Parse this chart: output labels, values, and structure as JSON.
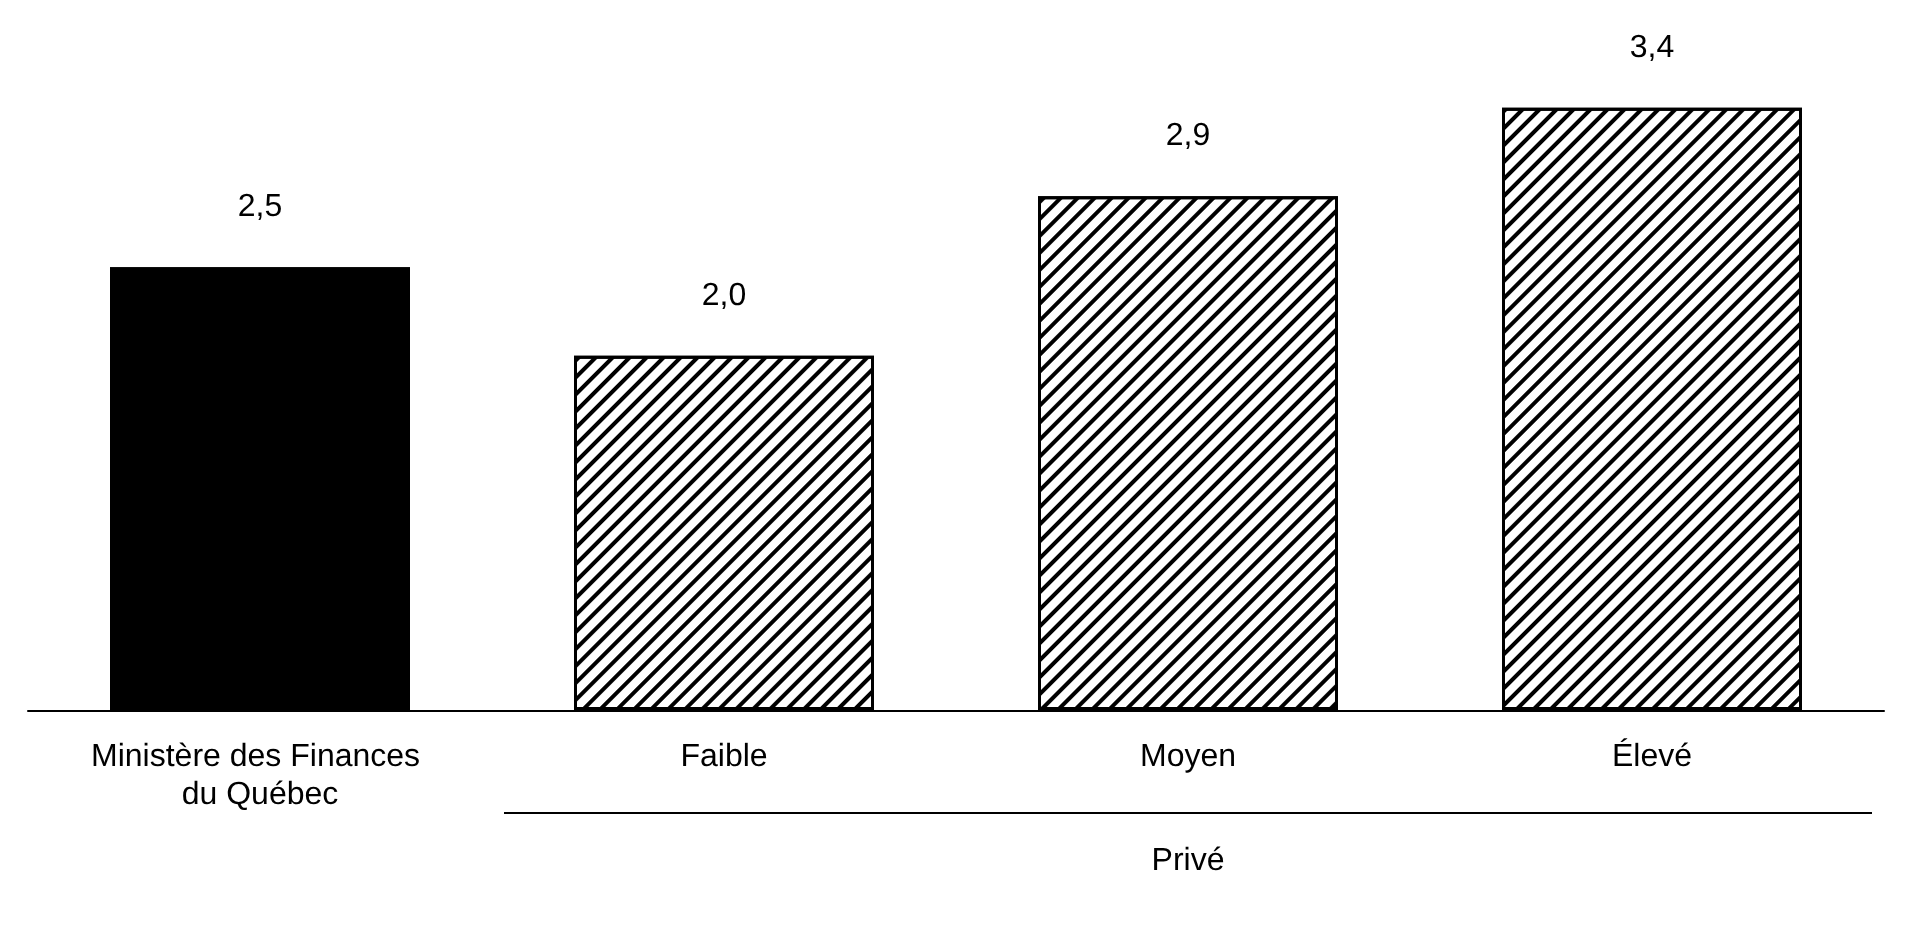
{
  "chart_data": {
    "type": "bar",
    "categories": [
      "Ministère des Finances du Québec",
      "Faible",
      "Moyen",
      "Élevé"
    ],
    "values": [
      2.5,
      2.0,
      2.9,
      3.4
    ],
    "value_labels": [
      "2,5",
      "2,0",
      "2,9",
      "3,4"
    ],
    "colors": [
      "#000000",
      "#ffffff",
      "#ffffff",
      "#ffffff"
    ],
    "tick_labels": "x",
    "annotations": [
      "Privé"
    ]
  }
}
